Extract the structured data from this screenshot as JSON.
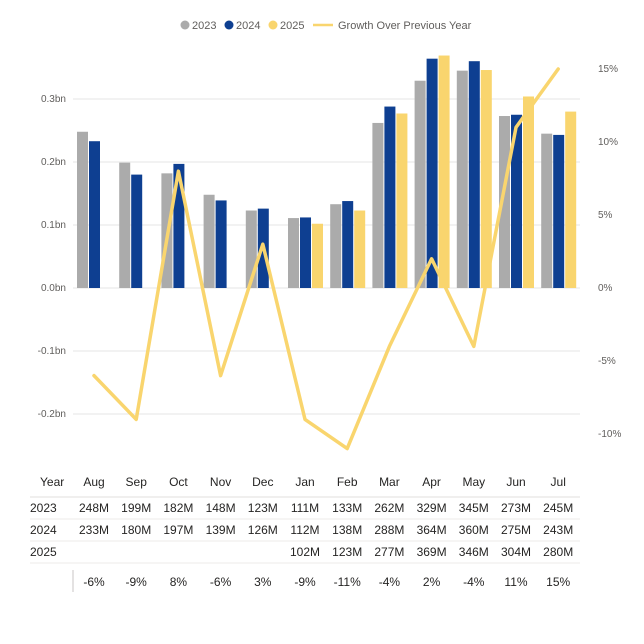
{
  "chart_data": {
    "type": "bar",
    "combo": "clustered-column with line on secondary axis",
    "categories": [
      "Aug",
      "Sep",
      "Oct",
      "Nov",
      "Dec",
      "Jan",
      "Feb",
      "Mar",
      "Apr",
      "May",
      "Jun",
      "Jul"
    ],
    "series": [
      {
        "name": "2023",
        "color": "#ababab",
        "values": [
          0.248,
          0.199,
          0.182,
          0.148,
          0.123,
          0.111,
          0.133,
          0.262,
          0.329,
          0.345,
          0.273,
          0.245
        ]
      },
      {
        "name": "2024",
        "color": "#0e3f91",
        "values": [
          0.233,
          0.18,
          0.197,
          0.139,
          0.126,
          0.112,
          0.138,
          0.288,
          0.364,
          0.36,
          0.275,
          0.243
        ]
      },
      {
        "name": "2025",
        "color": "#f9d56e",
        "values": [
          null,
          null,
          null,
          null,
          null,
          0.102,
          0.123,
          0.277,
          0.369,
          0.346,
          0.304,
          0.28
        ]
      }
    ],
    "line_series": {
      "name": "Growth Over Previous Year",
      "color": "#f9d56e",
      "axis": "right",
      "values": [
        -6,
        -9,
        8,
        -6,
        3,
        -9,
        -11,
        -4,
        2,
        -4,
        11,
        15
      ]
    },
    "ylim_left": [
      -0.25,
      0.35
    ],
    "ylim_right": [
      -10,
      15
    ],
    "left_ticks": [
      "0.3bn",
      "0.2bn",
      "0.1bn",
      "0.0bn",
      "-0.1bn",
      "-0.2bn"
    ],
    "right_ticks": [
      "15%",
      "10%",
      "5%",
      "0%",
      "-5%",
      "-10%"
    ],
    "legend_position": "top-center",
    "grid": true,
    "table": {
      "header_label": "Year",
      "rows": [
        {
          "label": "2023",
          "cells": [
            "248M",
            "199M",
            "182M",
            "148M",
            "123M",
            "111M",
            "133M",
            "262M",
            "329M",
            "345M",
            "273M",
            "245M"
          ]
        },
        {
          "label": "2024",
          "cells": [
            "233M",
            "180M",
            "197M",
            "139M",
            "126M",
            "112M",
            "138M",
            "288M",
            "364M",
            "360M",
            "275M",
            "243M"
          ]
        },
        {
          "label": "2025",
          "cells": [
            "",
            "",
            "",
            "",
            "",
            "102M",
            "123M",
            "277M",
            "369M",
            "346M",
            "304M",
            "280M"
          ]
        }
      ],
      "growth_row": [
        "-6%",
        "-9%",
        "8%",
        "-6%",
        "3%",
        "-9%",
        "-11%",
        "-4%",
        "2%",
        "-4%",
        "11%",
        "15%"
      ]
    }
  }
}
